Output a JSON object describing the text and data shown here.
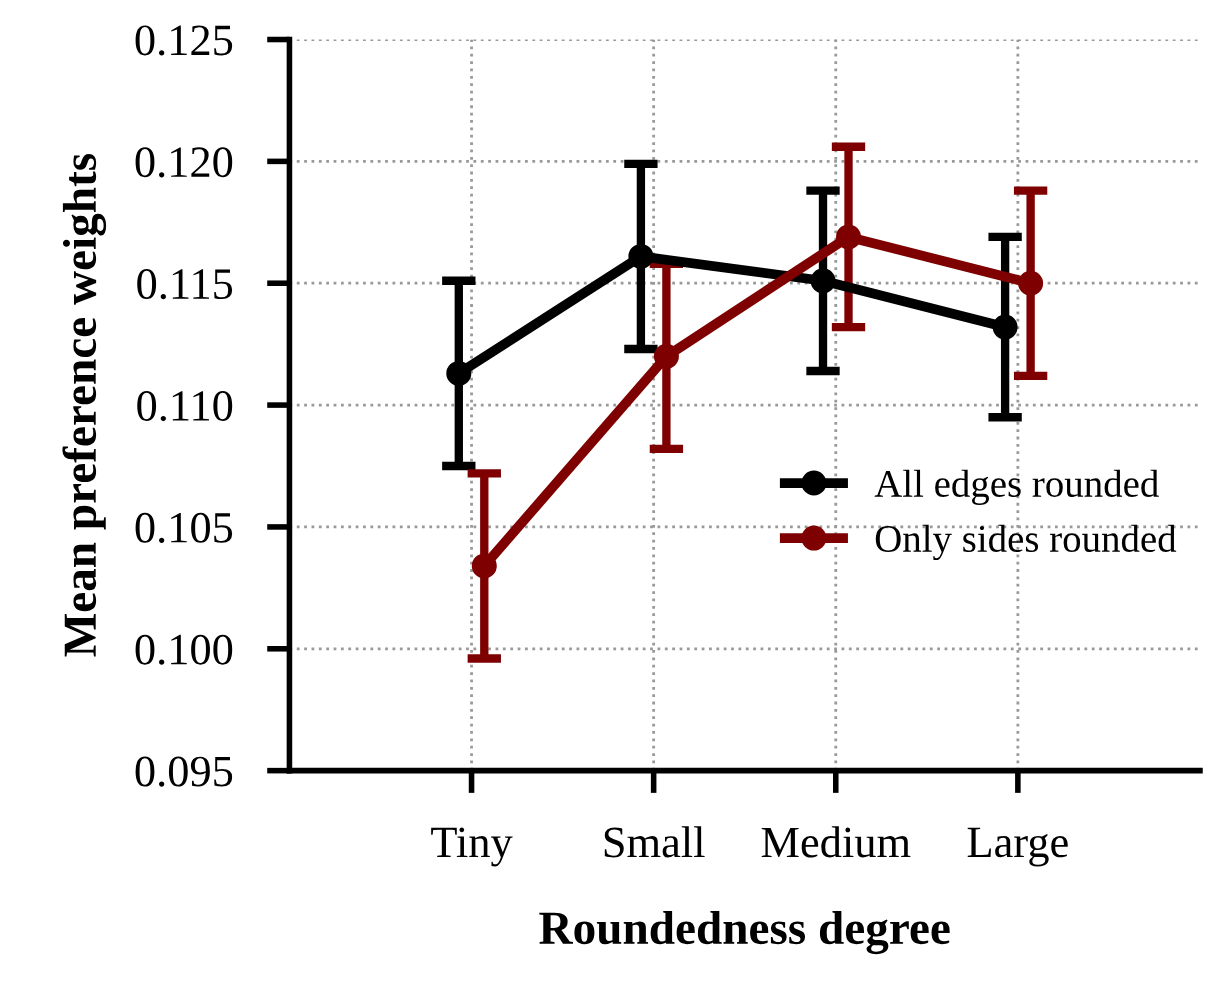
{
  "chart_data": {
    "type": "line",
    "xlabel": "Roundedness degree",
    "ylabel": "Mean preference weights",
    "categories": [
      "Tiny",
      "Small",
      "Medium",
      "Large"
    ],
    "series": [
      {
        "name": "All edges rounded",
        "color": "#000000",
        "values": [
          0.1113,
          0.1161,
          0.1151,
          0.1132
        ],
        "errors": [
          0.0038,
          0.0038,
          0.0037,
          0.0037
        ]
      },
      {
        "name": "Only sides rounded",
        "color": "#7f0000",
        "values": [
          0.1034,
          0.112,
          0.1169,
          0.115
        ],
        "errors": [
          0.0038,
          0.0038,
          0.0037,
          0.0038
        ]
      }
    ],
    "ylim": [
      0.095,
      0.125
    ],
    "yticks": [
      0.095,
      {
        "value": 0.1,
        "label": "0.100"
      },
      0.105,
      {
        "value": 0.11,
        "label": "0.110"
      },
      0.115,
      {
        "value": 0.12,
        "label": "0.120"
      },
      0.125
    ],
    "grid": true,
    "legend": "right",
    "marker": "circle",
    "line_style": "solid"
  }
}
